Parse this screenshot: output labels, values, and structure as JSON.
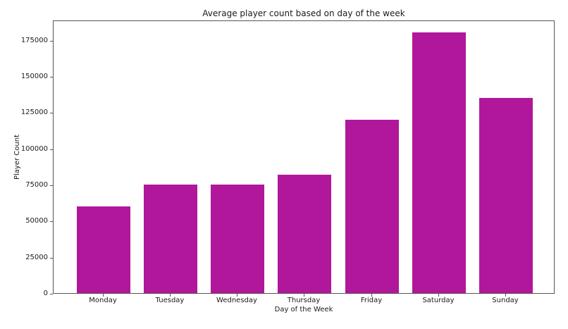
{
  "chart_data": {
    "type": "bar",
    "title": "Average player count based on day of the week",
    "xlabel": "Day of the Week",
    "ylabel": "Player Count",
    "categories": [
      "Monday",
      "Tuesday",
      "Wednesday",
      "Thursday",
      "Friday",
      "Saturday",
      "Sunday"
    ],
    "values": [
      60000,
      75000,
      75000,
      82000,
      120000,
      180000,
      135000
    ],
    "yticks": [
      0,
      25000,
      50000,
      75000,
      100000,
      125000,
      150000,
      175000
    ],
    "ylim": [
      0,
      189000
    ],
    "bar_color": "#b1179a",
    "background_color": "#ffffff",
    "spine_color": "#555555",
    "grid": false,
    "legend_position": "none"
  }
}
